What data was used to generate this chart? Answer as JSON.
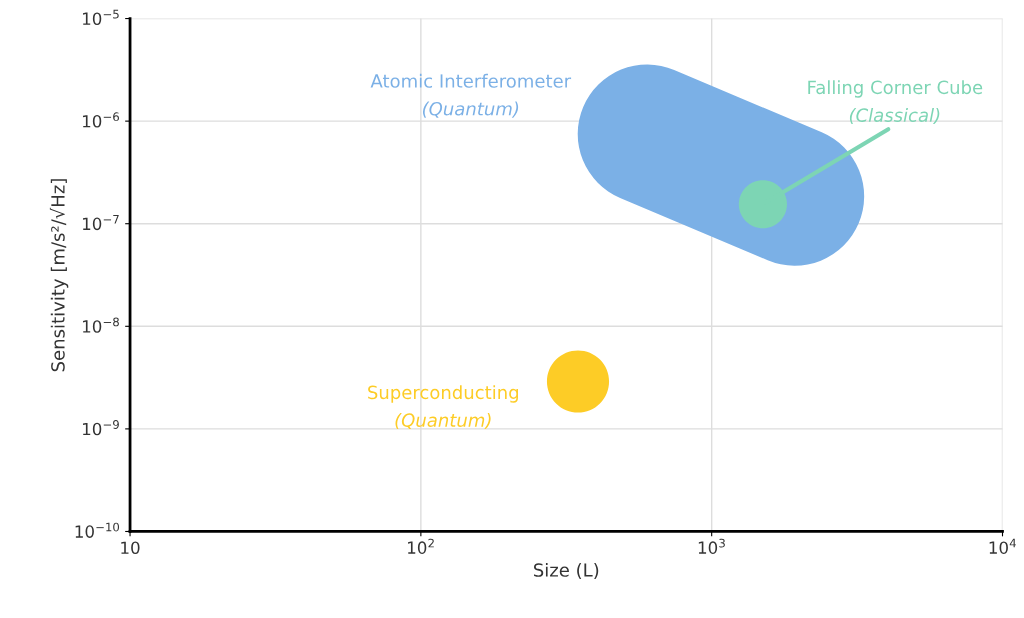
{
  "chart_data": {
    "type": "bubble",
    "xlabel": "Size (L)",
    "ylabel": "Sensitivity [m/s²/√Hz]",
    "log": "xy",
    "grid": true,
    "xlim": [
      10,
      10000
    ],
    "xticks": [
      10,
      {
        "value": 100,
        "label": "10$^{2}$"
      },
      {
        "value": 1000,
        "label": "10$^{3}$"
      },
      {
        "value": 10000,
        "label": "10$^{4}$"
      }
    ],
    "ylim": [
      1e-10,
      1e-05
    ],
    "yticks": [
      {
        "value": 1e-10,
        "label": "10$^{−10}$"
      },
      {
        "value": 1e-09,
        "label": "10$^{−9}$"
      },
      {
        "value": 1e-08,
        "label": "10$^{−8}$"
      },
      {
        "value": 1e-07,
        "label": "10$^{−7}$"
      },
      {
        "value": 1e-06,
        "label": "10$^{−6}$"
      },
      {
        "value": 1e-05,
        "label": "10$^{−5}$"
      }
    ],
    "series": [
      {
        "type": "line",
        "name": "Atomic Interferometer\n(Quantum)",
        "color": "#7bb0e6",
        "x": [
          600,
          1930
        ],
        "values": [
          7.5e-07,
          1.85e-07
        ]
      },
      {
        "name": "Falling Corner Cube\n(Classical)",
        "color": "#7dd5b4",
        "x": [
          1500
        ],
        "values": [
          1.55e-07
        ],
        "sizes": [
          0.6
        ]
      },
      {
        "name": "Superconducting\n(Quantum)",
        "color": "#fdcc26",
        "x": [
          347
        ],
        "values": [
          2.9e-09
        ],
        "sizes": [
          1
        ]
      }
    ]
  }
}
